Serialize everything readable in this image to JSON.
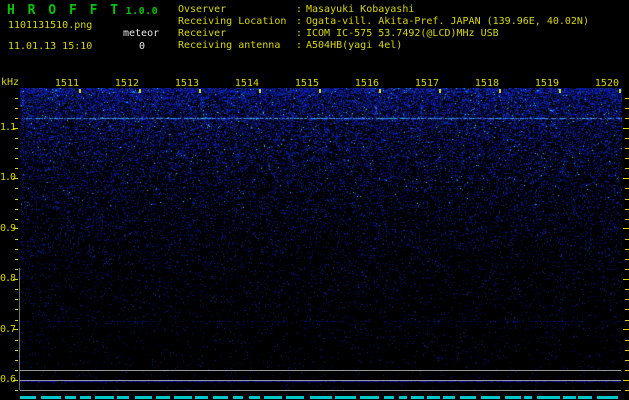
{
  "header": {
    "app_title": "H R O F F T",
    "app_version": "1.0.0",
    "filename": "1101131510.png",
    "datetime": "11.01.13 15:10",
    "meteor_label": "meteor",
    "meteor_count": "0",
    "separator": ":",
    "info": [
      {
        "label": "Ovserver",
        "value": "Masayuki Kobayashi"
      },
      {
        "label": "Receiving Location",
        "value": "Ogata-vill. Akita-Pref. JAPAN (139.96E, 40.02N)"
      },
      {
        "label": "Receiver",
        "value": "ICOM IC-575 53.7492(@LCD)MHz USB"
      },
      {
        "label": "Receiving antenna",
        "value": "A504HB(yagi 4el)"
      }
    ]
  },
  "chart_data": {
    "type": "heatmap",
    "subtype": "radio-meteor-spectrogram",
    "x": {
      "labels": [
        "1511",
        "1512",
        "1513",
        "1514",
        "1515",
        "1516",
        "1517",
        "1518",
        "1519",
        "1520"
      ],
      "minutes_per_division": 1
    },
    "y": {
      "unit_label": "kHz",
      "tick_labels": [
        "1.1",
        "1.0",
        "0.9",
        "0.8",
        "0.7",
        "0.6"
      ],
      "top_value": 1.19,
      "bottom_value": 0.58,
      "minor_step_khz": 0.02
    },
    "features": {
      "carrier_line_khz": 1.12,
      "faint_line_khz": 0.72,
      "reference_lines_khz": [
        0.62,
        0.6,
        0.58
      ],
      "signal_level_trace": "flat dotted blue line at 0.60 kHz reference level",
      "noise_field": "blue speckle density fading from top (1.19 kHz) to bottom (0.6 kHz)",
      "meteor_echoes": 0
    }
  },
  "colors": {
    "background": "#000000",
    "text_yellow": "#d8d800",
    "title_green": "#00c800",
    "text_white": "#e8e8e8",
    "noise_blue": "#2238cc",
    "carrier_blue": "#5a8cff",
    "trace_blue": "#1c1cc8",
    "reference_gray": "#969696",
    "activity_cyan": "#00c8c8"
  }
}
